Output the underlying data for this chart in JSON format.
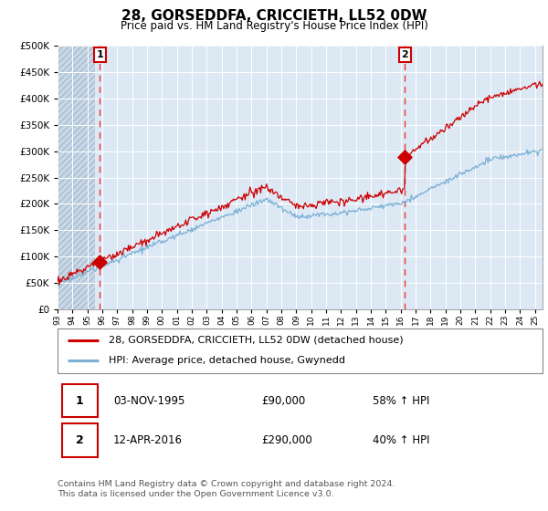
{
  "title": "28, GORSEDDFA, CRICCIETH, LL52 0DW",
  "subtitle": "Price paid vs. HM Land Registry's House Price Index (HPI)",
  "ylim": [
    0,
    500000
  ],
  "yticks": [
    0,
    50000,
    100000,
    150000,
    200000,
    250000,
    300000,
    350000,
    400000,
    450000,
    500000
  ],
  "sale1_date": 1995.84,
  "sale1_price": 90000,
  "sale2_date": 2016.28,
  "sale2_price": 290000,
  "legend_line1": "28, GORSEDDFA, CRICCIETH, LL52 0DW (detached house)",
  "legend_line2": "HPI: Average price, detached house, Gwynedd",
  "table_row1": [
    "1",
    "03-NOV-1995",
    "£90,000",
    "58% ↑ HPI"
  ],
  "table_row2": [
    "2",
    "12-APR-2016",
    "£290,000",
    "40% ↑ HPI"
  ],
  "footnote": "Contains HM Land Registry data © Crown copyright and database right 2024.\nThis data is licensed under the Open Government Licence v3.0.",
  "line_color_red": "#cc0000",
  "line_color_blue": "#7bafd4",
  "bg_color": "#dce9f5",
  "hatch_area_xmax": 1995.5,
  "xmin": 1993,
  "xmax": 2025.5,
  "seed": 17
}
